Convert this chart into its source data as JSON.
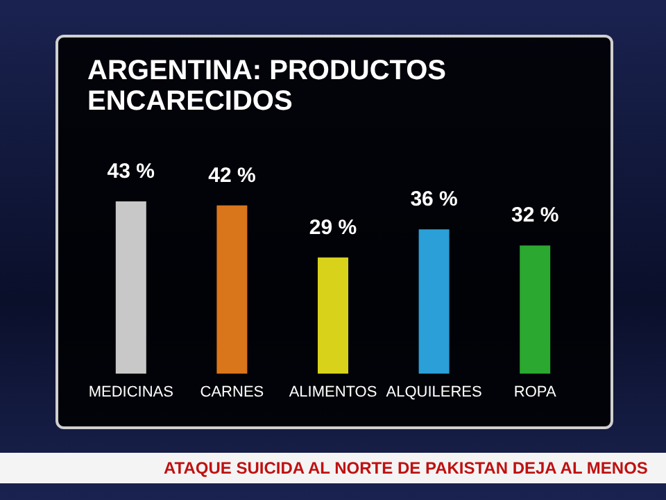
{
  "chart_data": {
    "type": "bar",
    "title": "ARGENTINA: PRODUCTOS\nENCARECIDOS",
    "categories": [
      "MEDICINAS",
      "CARNES",
      "ALIMENTOS",
      "ALQUILERES",
      "ROPA"
    ],
    "values": [
      43,
      42,
      29,
      36,
      32
    ],
    "colors": [
      "#c8c8c8",
      "#d9751a",
      "#d8d21a",
      "#2a9fd8",
      "#2aa830"
    ],
    "value_labels": [
      "43 %",
      "42 %",
      "29 %",
      "36 %",
      "32 %"
    ],
    "annotations": [
      "ATAQUE SUICIDA AL NORTE DE PAKISTAN DEJA AL MENOS"
    ]
  }
}
